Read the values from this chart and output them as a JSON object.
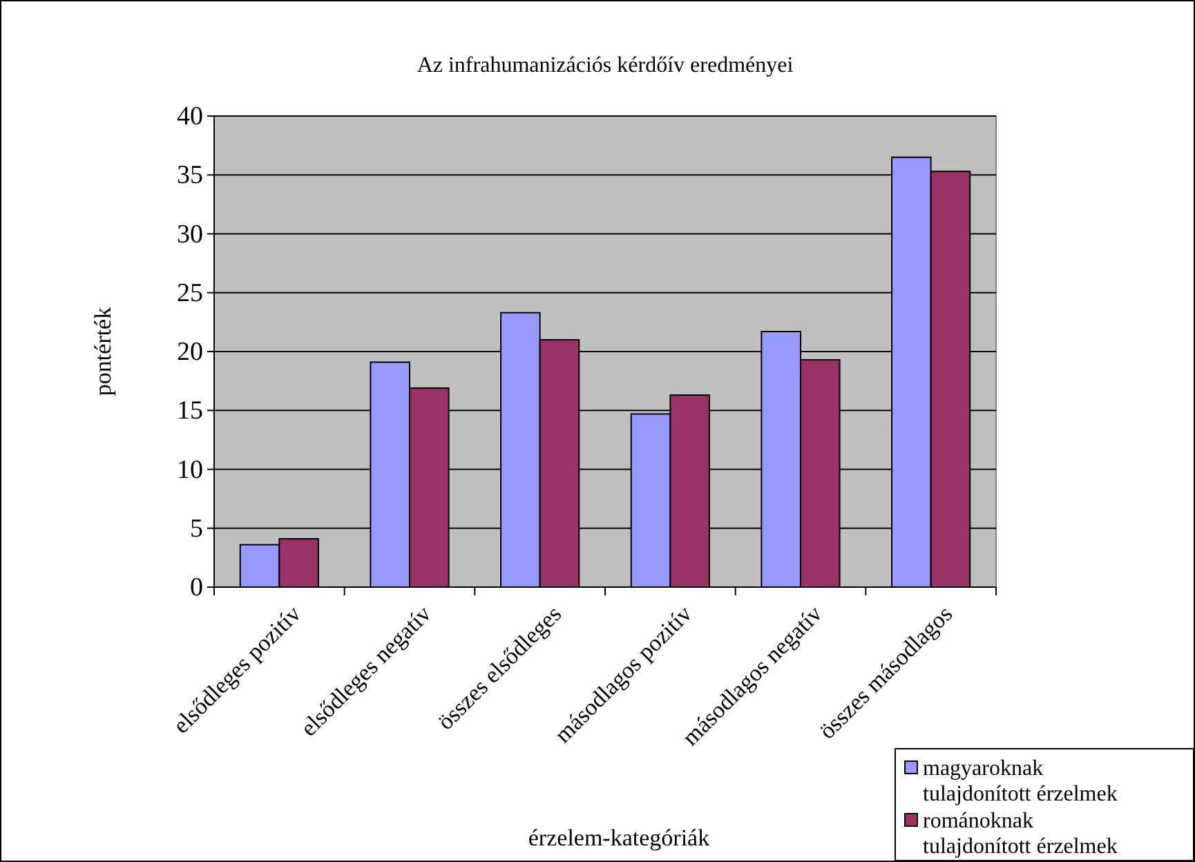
{
  "chart_data": {
    "type": "bar",
    "title": "Az infrahumanizációs kérdőív eredményei",
    "xlabel": "érzelem-kategóriák",
    "ylabel": "pontérték",
    "categories": [
      "elsődleges pozitív",
      "elsődleges negatív",
      "összes elsődleges",
      "másodlagos pozitív",
      "másodlagos negatív",
      "összes másodlagos"
    ],
    "series": [
      {
        "name": "magyaroknak tulajdonított érzelmek",
        "color": "#9999ff",
        "values": [
          3.6,
          19.1,
          23.3,
          14.7,
          21.7,
          36.5
        ]
      },
      {
        "name": "románoknak tulajdonított érzelmek",
        "color": "#993366",
        "values": [
          4.1,
          16.9,
          21.0,
          16.3,
          19.3,
          35.3
        ]
      }
    ],
    "ylim": [
      0,
      40
    ],
    "yticks": [
      0,
      5,
      10,
      15,
      20,
      25,
      30,
      35,
      40
    ],
    "grid": "y",
    "legend": "bottom right"
  }
}
